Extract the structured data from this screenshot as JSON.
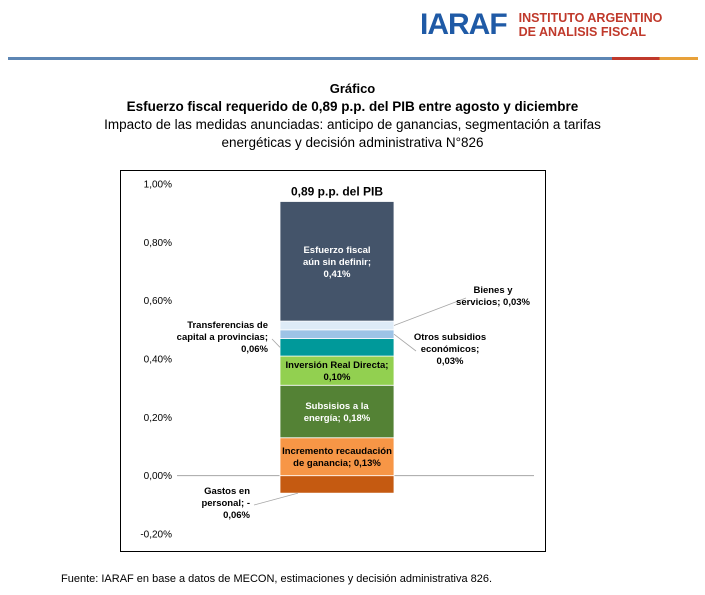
{
  "header": {
    "logo_mark": "IARAF",
    "org_line1": "INSTITUTO ARGENTINO",
    "org_line2": "DE ANALISIS FISCAL",
    "line_colors": [
      "#5d86b4",
      "#c0392b",
      "#e8a13a"
    ]
  },
  "title": {
    "kicker": "Gráfico",
    "main": "Esfuerzo fiscal requerido de 0,89 p.p. del PIB entre agosto y diciembre",
    "subtitle": "Impacto de las medidas anunciadas: anticipo de ganancias, segmentación a tarifas energéticas y decisión administrativa N°826"
  },
  "chart_data": {
    "type": "bar",
    "stacked": true,
    "title": "0,89 p.p. del PIB",
    "ylim": [
      -0.2,
      1.0
    ],
    "yticks": [
      -0.2,
      0,
      0.2,
      0.4,
      0.6,
      0.8,
      1.0
    ],
    "ytick_labels": [
      "-0,20%",
      "0,00%",
      "0,20%",
      "0,40%",
      "0,60%",
      "0,80%",
      "1,00%"
    ],
    "grid": false,
    "segments": [
      {
        "label_lines": [
          "Gastos en",
          "personal; -",
          "0,06%"
        ],
        "value": -0.06,
        "color": "#c55a11",
        "label_pos": "outside-left"
      },
      {
        "label_lines": [
          "Incremento recaudación",
          "de ganancia; 0,13%"
        ],
        "value": 0.13,
        "color": "#f79646",
        "label_pos": "inside"
      },
      {
        "label_lines": [
          "Subsisios a la",
          "energía; 0,18%"
        ],
        "value": 0.18,
        "color": "#548235",
        "label_pos": "inside"
      },
      {
        "label_lines": [
          "Inversión Real Directa;",
          "0,10%"
        ],
        "value": 0.1,
        "color": "#92d050",
        "label_pos": "inside"
      },
      {
        "label_lines": [
          "Transferencias de",
          "capital a provincias;",
          "0,06%"
        ],
        "value": 0.06,
        "color": "#00999a",
        "label_pos": "outside-left"
      },
      {
        "label_lines": [
          "Otros subsidios",
          "económicos;",
          "0,03%"
        ],
        "value": 0.03,
        "color": "#9dc3e6",
        "label_pos": "outside-right"
      },
      {
        "label_lines": [
          "Bienes y",
          "servicios; 0,03%"
        ],
        "value": 0.03,
        "color": "#deebf7",
        "label_pos": "outside-right"
      },
      {
        "label_lines": [
          "Esfuerzo fiscal",
          "aún sin definir;",
          "0,41%"
        ],
        "value": 0.41,
        "color": "#44546a",
        "label_pos": "inside"
      }
    ]
  },
  "footer": "Fuente: IARAF en base a datos de MECON, estimaciones y decisión administrativa 826."
}
